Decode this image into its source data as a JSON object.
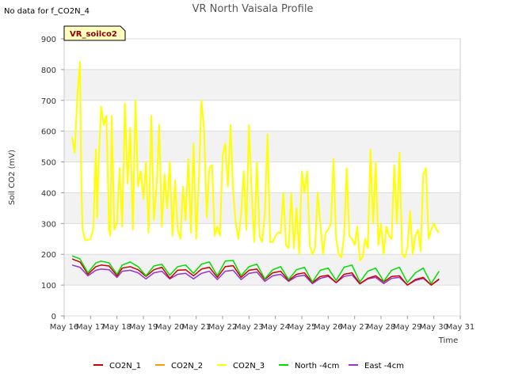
{
  "no_data_text": "No data for f_CO2N_4",
  "badge_label": "VR_soilco2",
  "chart_data": {
    "type": "line",
    "title": "VR North Vaisala Profile",
    "xlabel": "Time",
    "ylabel": "Soil CO2 (mV)",
    "xlim": [
      16,
      31
    ],
    "ylim": [
      0,
      900
    ],
    "y_ticks": [
      0,
      100,
      200,
      300,
      400,
      500,
      600,
      700,
      800,
      900
    ],
    "x_ticks": [
      16,
      17,
      18,
      19,
      20,
      21,
      22,
      23,
      24,
      25,
      26,
      27,
      28,
      29,
      30,
      31
    ],
    "x_tick_labels": [
      "May 16",
      "May 17",
      "May 18",
      "May 19",
      "May 20",
      "May 21",
      "May 22",
      "May 23",
      "May 24",
      "May 25",
      "May 26",
      "May 27",
      "May 28",
      "May 29",
      "May 30",
      "May 31"
    ],
    "legend_position": "bottom",
    "colors": {
      "CO2N_1": "#cc0000",
      "CO2N_2": "#ff9900",
      "CO2N_3": "#ffff00",
      "North -4cm": "#00dd00",
      "East -4cm": "#9933cc"
    },
    "series": [
      {
        "name": "CO2N_1",
        "x": [
          16.3,
          16.6,
          16.9,
          17.2,
          17.4,
          17.7,
          18.0,
          18.2,
          18.5,
          18.8,
          19.1,
          19.4,
          19.7,
          20.0,
          20.3,
          20.6,
          20.9,
          21.2,
          21.5,
          21.8,
          22.1,
          22.4,
          22.7,
          23.0,
          23.3,
          23.6,
          23.9,
          24.2,
          24.5,
          24.8,
          25.1,
          25.4,
          25.7,
          26.0,
          26.3,
          26.6,
          26.9,
          27.2,
          27.5,
          27.8,
          28.1,
          28.4,
          28.7,
          29.0,
          29.3,
          29.6,
          29.9,
          30.2
        ],
        "y": [
          185,
          175,
          135,
          160,
          165,
          162,
          130,
          155,
          160,
          150,
          128,
          150,
          158,
          122,
          148,
          150,
          130,
          152,
          158,
          125,
          160,
          163,
          125,
          148,
          152,
          118,
          140,
          145,
          115,
          135,
          140,
          108,
          128,
          132,
          108,
          135,
          140,
          105,
          122,
          130,
          110,
          128,
          130,
          100,
          118,
          125,
          100,
          120
        ]
      },
      {
        "name": "CO2N_2",
        "x": [],
        "y": []
      },
      {
        "name": "CO2N_3",
        "x": [
          16.3,
          16.4,
          16.5,
          16.6,
          16.65,
          16.7,
          16.8,
          17.0,
          17.1,
          17.2,
          17.25,
          17.3,
          17.4,
          17.5,
          17.6,
          17.7,
          17.75,
          17.8,
          17.9,
          18.0,
          18.1,
          18.2,
          18.3,
          18.4,
          18.5,
          18.6,
          18.7,
          18.8,
          18.9,
          19.0,
          19.1,
          19.2,
          19.3,
          19.4,
          19.5,
          19.6,
          19.7,
          19.8,
          19.9,
          20.0,
          20.1,
          20.2,
          20.3,
          20.4,
          20.5,
          20.6,
          20.7,
          20.8,
          20.9,
          21.0,
          21.1,
          21.2,
          21.3,
          21.4,
          21.5,
          21.6,
          21.7,
          21.8,
          21.9,
          22.0,
          22.1,
          22.2,
          22.3,
          22.4,
          22.5,
          22.6,
          22.7,
          22.8,
          22.9,
          23.0,
          23.1,
          23.2,
          23.3,
          23.4,
          23.5,
          23.6,
          23.7,
          23.8,
          23.9,
          24.0,
          24.1,
          24.2,
          24.3,
          24.4,
          24.5,
          24.6,
          24.7,
          24.8,
          24.9,
          25.0,
          25.1,
          25.2,
          25.3,
          25.4,
          25.5,
          25.6,
          25.7,
          25.8,
          25.9,
          26.0,
          26.1,
          26.2,
          26.3,
          26.4,
          26.5,
          26.6,
          26.7,
          26.8,
          26.9,
          27.0,
          27.1,
          27.2,
          27.3,
          27.4,
          27.5,
          27.6,
          27.7,
          27.8,
          27.9,
          28.0,
          28.1,
          28.2,
          28.3,
          28.4,
          28.5,
          28.6,
          28.7,
          28.8,
          28.9,
          29.0,
          29.1,
          29.2,
          29.3,
          29.4,
          29.5,
          29.6,
          29.7,
          29.8,
          29.9,
          30.0,
          30.1,
          30.2
        ],
        "y": [
          580,
          530,
          720,
          825,
          420,
          280,
          245,
          250,
          280,
          540,
          320,
          480,
          680,
          620,
          650,
          280,
          260,
          650,
          280,
          300,
          480,
          290,
          690,
          430,
          610,
          280,
          700,
          420,
          470,
          380,
          500,
          270,
          650,
          310,
          420,
          620,
          290,
          460,
          350,
          500,
          260,
          440,
          280,
          250,
          420,
          310,
          510,
          270,
          560,
          250,
          440,
          700,
          600,
          320,
          480,
          490,
          260,
          290,
          260,
          520,
          560,
          420,
          620,
          400,
          300,
          250,
          330,
          470,
          280,
          620,
          400,
          240,
          500,
          260,
          240,
          330,
          590,
          240,
          240,
          260,
          270,
          270,
          400,
          230,
          220,
          400,
          220,
          350,
          200,
          470,
          400,
          470,
          230,
          200,
          220,
          400,
          300,
          200,
          270,
          280,
          300,
          510,
          250,
          200,
          190,
          260,
          480,
          260,
          250,
          230,
          290,
          180,
          190,
          250,
          220,
          540,
          300,
          500,
          230,
          300,
          200,
          290,
          260,
          250,
          490,
          300,
          530,
          200,
          190,
          220,
          340,
          200,
          260,
          280,
          210,
          460,
          480,
          250,
          280,
          300,
          280,
          270
        ]
      },
      {
        "name": "North -4cm",
        "x": [
          16.3,
          16.6,
          16.9,
          17.2,
          17.4,
          17.7,
          18.0,
          18.2,
          18.5,
          18.8,
          19.1,
          19.4,
          19.7,
          20.0,
          20.3,
          20.6,
          20.9,
          21.2,
          21.5,
          21.8,
          22.1,
          22.4,
          22.7,
          23.0,
          23.3,
          23.6,
          23.9,
          24.2,
          24.5,
          24.8,
          25.1,
          25.4,
          25.7,
          26.0,
          26.3,
          26.6,
          26.9,
          27.2,
          27.5,
          27.8,
          28.1,
          28.4,
          28.7,
          29.0,
          29.3,
          29.6,
          29.9,
          30.2
        ],
        "y": [
          195,
          185,
          140,
          172,
          178,
          172,
          135,
          165,
          175,
          160,
          130,
          162,
          168,
          132,
          160,
          165,
          138,
          168,
          175,
          130,
          178,
          180,
          130,
          160,
          168,
          120,
          150,
          160,
          118,
          150,
          158,
          110,
          148,
          155,
          115,
          158,
          165,
          110,
          145,
          155,
          112,
          148,
          158,
          108,
          140,
          155,
          105,
          145
        ]
      },
      {
        "name": "East -4cm",
        "x": [
          16.3,
          16.6,
          16.9,
          17.2,
          17.4,
          17.7,
          18.0,
          18.2,
          18.5,
          18.8,
          19.1,
          19.4,
          19.7,
          20.0,
          20.3,
          20.6,
          20.9,
          21.2,
          21.5,
          21.8,
          22.1,
          22.4,
          22.7,
          23.0,
          23.3,
          23.6,
          23.9,
          24.2,
          24.5,
          24.8,
          25.1,
          25.4,
          25.7,
          26.0,
          26.3,
          26.6,
          26.9,
          27.2,
          27.5,
          27.8,
          28.1,
          28.4,
          28.7,
          29.0,
          29.3,
          29.6,
          29.9,
          30.2
        ],
        "y": [
          165,
          158,
          130,
          148,
          152,
          150,
          125,
          145,
          148,
          140,
          120,
          140,
          145,
          120,
          135,
          138,
          120,
          138,
          145,
          118,
          145,
          148,
          118,
          138,
          142,
          112,
          130,
          135,
          112,
          128,
          132,
          105,
          122,
          128,
          108,
          128,
          133,
          104,
          120,
          125,
          105,
          122,
          125,
          100,
          115,
          122,
          100,
          118
        ]
      }
    ]
  }
}
